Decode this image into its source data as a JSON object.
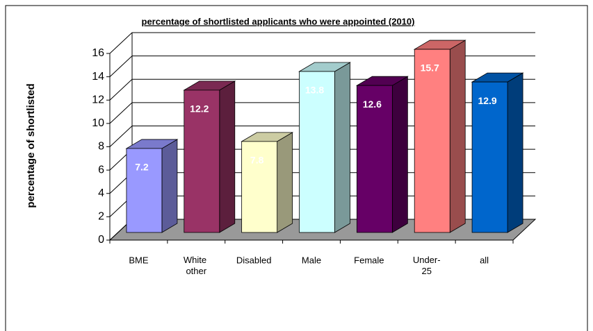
{
  "chart_data": {
    "type": "bar3d",
    "title": "percentage of shortlisted applicants who were appointed (2010)",
    "y_label": "percentage of shortlisted",
    "categories": [
      "BME",
      "White other",
      "Disabled",
      "Male",
      "Female",
      "Under-25",
      "all"
    ],
    "values": [
      7.2,
      12.2,
      7.8,
      13.8,
      12.6,
      15.7,
      12.9
    ],
    "colors": [
      "#9999ff",
      "#993366",
      "#ffffcc",
      "#ccffff",
      "#660066",
      "#ff8080",
      "#0066cc"
    ],
    "ylim": [
      0,
      16
    ],
    "yticks": [
      0,
      2,
      4,
      6,
      8,
      10,
      12,
      14,
      16
    ],
    "grid": true
  }
}
